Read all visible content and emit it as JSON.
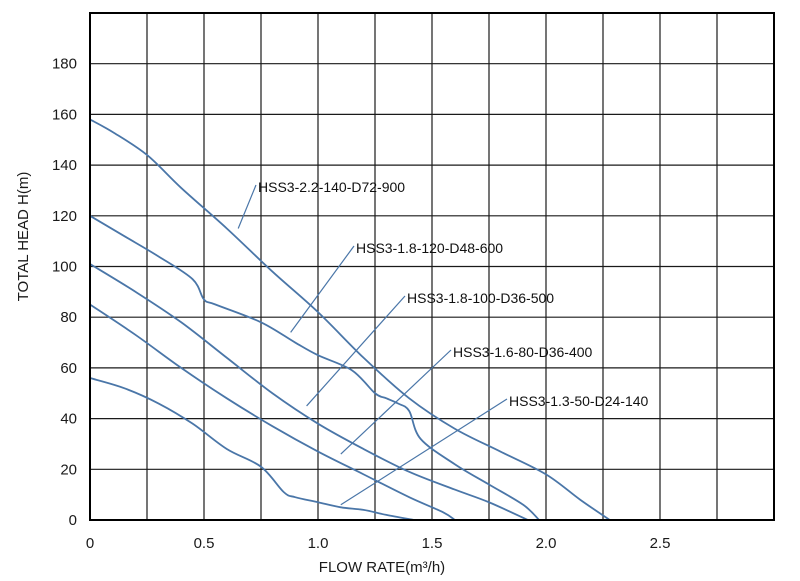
{
  "chart_data": {
    "type": "line",
    "title": "",
    "xlabel": "FLOW RATE(m³/h)",
    "ylabel": "TOTAL HEAD H(m)",
    "xlim": [
      0,
      3.0
    ],
    "ylim": [
      0,
      200
    ],
    "x_ticks": [
      0,
      0.5,
      1.0,
      1.5,
      2.0,
      2.5
    ],
    "x_tick_labels": [
      "0",
      "0.5",
      "1.0",
      "1.5",
      "2.0",
      "2.5"
    ],
    "y_ticks": [
      0,
      20,
      40,
      60,
      80,
      100,
      120,
      140,
      160,
      180
    ],
    "y_tick_labels": [
      "0",
      "20",
      "40",
      "60",
      "80",
      "100",
      "120",
      "140",
      "160",
      "180"
    ],
    "x_grid_step": 0.25,
    "y_grid_step": 20,
    "grid": true,
    "line_color": "#4a76a8",
    "series": [
      {
        "name": "HSS3-2.2-140-D72-900",
        "x": [
          0,
          0.1,
          0.25,
          0.4,
          0.6,
          0.8,
          1.0,
          1.2,
          1.4,
          1.6,
          1.8,
          2.0,
          2.15,
          2.28
        ],
        "y": [
          158,
          153,
          144,
          131,
          115,
          98,
          82,
          64,
          48,
          36,
          27,
          18,
          8,
          0
        ]
      },
      {
        "name": "HSS3-1.8-120-D48-600",
        "x": [
          0,
          0.15,
          0.3,
          0.45,
          0.5,
          0.55,
          0.75,
          0.9,
          1.0,
          1.15,
          1.25,
          1.3,
          1.35,
          1.4,
          1.45,
          1.6,
          1.75,
          1.9,
          1.97
        ],
        "y": [
          120,
          112,
          104,
          95,
          87,
          85,
          78,
          70,
          65,
          59,
          50,
          48,
          46,
          43,
          32,
          22,
          14,
          6,
          0
        ]
      },
      {
        "name": "HSS3-1.8-100-D36-500",
        "x": [
          0,
          0.2,
          0.4,
          0.6,
          0.8,
          1.0,
          1.2,
          1.4,
          1.6,
          1.75,
          1.92
        ],
        "y": [
          101,
          90,
          78,
          64,
          50,
          38,
          28,
          19,
          12,
          7,
          0
        ]
      },
      {
        "name": "HSS3-1.6-80-D36-400",
        "x": [
          0,
          0.2,
          0.4,
          0.6,
          0.8,
          1.0,
          1.2,
          1.4,
          1.55,
          1.6
        ],
        "y": [
          85,
          73,
          60,
          48,
          37,
          27,
          18,
          9,
          3,
          0
        ]
      },
      {
        "name": "HSS3-1.3-50-D24-140",
        "x": [
          0,
          0.15,
          0.3,
          0.45,
          0.6,
          0.75,
          0.85,
          0.9,
          1.0,
          1.1,
          1.2,
          1.3,
          1.42
        ],
        "y": [
          56,
          52,
          46,
          38,
          28,
          21,
          11,
          9,
          7,
          5,
          4,
          2,
          0
        ]
      }
    ],
    "annotations": [
      {
        "text": "HSS3-2.2-140-D72-900",
        "series": "HSS3-2.2-140-D72-900",
        "x": 0.65,
        "y": 115
      },
      {
        "text": "HSS3-1.8-120-D48-600",
        "series": "HSS3-1.8-120-D48-600",
        "x": 0.88,
        "y": 74
      },
      {
        "text": "HSS3-1.8-100-D36-500",
        "series": "HSS3-1.8-100-D36-500",
        "x": 0.95,
        "y": 45
      },
      {
        "text": "HSS3-1.6-80-D36-400",
        "series": "HSS3-1.6-80-D36-400",
        "x": 1.1,
        "y": 26
      },
      {
        "text": "HSS3-1.3-50-D24-140",
        "series": "HSS3-1.3-50-D24-140",
        "x": 1.1,
        "y": 6
      }
    ]
  }
}
